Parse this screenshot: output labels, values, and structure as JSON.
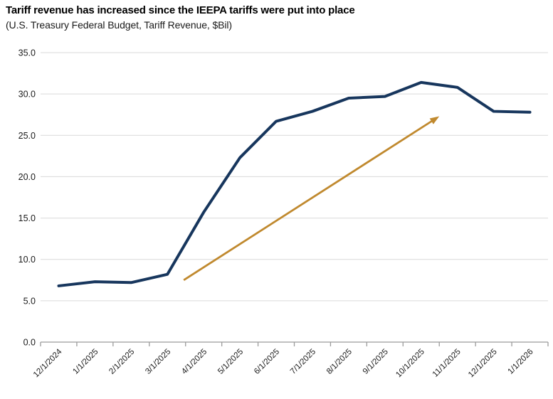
{
  "chart_data": {
    "type": "line",
    "title": "Tariff revenue has increased since the IEEPA tariffs were put into place",
    "subtitle": "(U.S. Treasury Federal Budget, Tariff Revenue, $Bil)",
    "x_labels": [
      "12/1/2024",
      "1/1/2025",
      "2/1/2025",
      "3/1/2025",
      "4/1/2025",
      "5/1/2025",
      "6/1/2025",
      "7/1/2025",
      "8/1/2025",
      "9/1/2025",
      "10/1/2025",
      "11/1/2025",
      "12/1/2025",
      "1/1/2026"
    ],
    "series": [
      {
        "name": "Tariff Revenue ($Bil)",
        "values": [
          6.8,
          7.3,
          7.2,
          8.2,
          15.7,
          22.3,
          26.7,
          27.9,
          29.5,
          29.7,
          31.4,
          30.8,
          27.9,
          27.8
        ],
        "color": "#17365D"
      }
    ],
    "ylim": [
      0,
      35
    ],
    "y_ticks": [
      0,
      5,
      10,
      15,
      20,
      25,
      30,
      35
    ],
    "y_tick_labels": [
      "0.0",
      "5.0",
      "10.0",
      "15.0",
      "20.0",
      "25.0",
      "30.0",
      "35.0"
    ],
    "grid": "horizontal",
    "legend_position": "none",
    "annotation_arrow": {
      "from": {
        "x": 3.45,
        "y": 7.5
      },
      "to": {
        "x": 10.5,
        "y": 27.3
      },
      "color": "#C0892E"
    },
    "colors": {
      "line": "#17365D",
      "arrow": "#C0892E",
      "gridline": "#D9D9D9",
      "axis": "#9B9B9B",
      "tick_label": "#1A1A1A"
    }
  }
}
